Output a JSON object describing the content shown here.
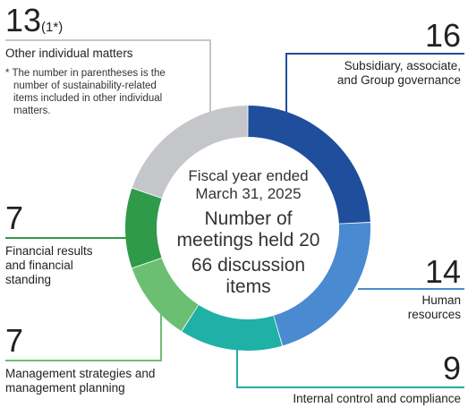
{
  "chart_data": {
    "type": "donut",
    "title_line1": "Fiscal year ended",
    "title_line2": "March 31, 2025",
    "total_meetings_line": "Number of",
    "total_meetings_line2": "meetings held 20",
    "discussion_line1": "66 discussion",
    "discussion_line2": "items",
    "segments": [
      {
        "label": "Subsidiary, associate, and Group governance",
        "label_line1": "Subsidiary, associate,",
        "label_line2": "and Group governance",
        "value": 16,
        "display": "16",
        "color": "#1f4e9c"
      },
      {
        "label": "Human resources",
        "label_line1": "Human",
        "label_line2": "resources",
        "value": 14,
        "display": "14",
        "color": "#4a8ad0"
      },
      {
        "label": "Internal control and compliance",
        "label_line1": "Internal control and compliance",
        "value": 9,
        "display": "9",
        "color": "#1fb0a6"
      },
      {
        "label": "Management strategies and management planning",
        "label_line1": "Management strategies and",
        "label_line2": "management planning",
        "value": 7,
        "display": "7",
        "color": "#6cbf72"
      },
      {
        "label": "Financial results and financial standing",
        "label_line1": "Financial results",
        "label_line2": "and financial",
        "label_line3": "standing",
        "value": 7,
        "display": "7",
        "color": "#2e9a4a"
      },
      {
        "label": "Other individual matters",
        "label_line1": "Other individual matters",
        "value": 13,
        "display": "13",
        "sub_display": "(1*)",
        "color": "#c4c6c9"
      }
    ],
    "footnote_line1": "* The number in parentheses is the",
    "footnote_line2": "number of sustainability-related",
    "footnote_line3": "items included in other individual",
    "footnote_line4": "matters."
  }
}
